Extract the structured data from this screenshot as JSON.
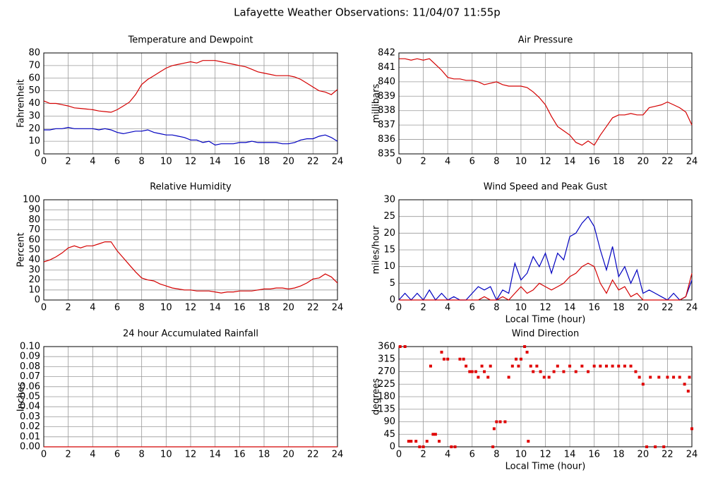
{
  "title": "Lafayette Weather Observations: 11/04/07 11:55p",
  "chart_data": [
    {
      "type": "line",
      "title": "Temperature and Dewpoint",
      "ylabel": "Fahrenheit",
      "x": [
        0,
        0.5,
        1,
        1.5,
        2,
        2.5,
        3,
        3.5,
        4,
        4.5,
        5,
        5.5,
        6,
        6.5,
        7,
        7.5,
        8,
        8.5,
        9,
        9.5,
        10,
        10.5,
        11,
        11.5,
        12,
        12.5,
        13,
        13.5,
        14,
        14.5,
        15,
        15.5,
        16,
        16.5,
        17,
        17.5,
        18,
        18.5,
        19,
        19.5,
        20,
        20.5,
        21,
        21.5,
        22,
        22.5,
        23,
        23.5,
        24
      ],
      "series": [
        {
          "color": "#d40000",
          "values": [
            42,
            40,
            40,
            39,
            38,
            36.5,
            36,
            35.5,
            35,
            34,
            33.5,
            33,
            35,
            38,
            41,
            47,
            55,
            59,
            62,
            65,
            68,
            70,
            71,
            72,
            73,
            72,
            74,
            74,
            74,
            73,
            72,
            71,
            70,
            69,
            67,
            65,
            64,
            63,
            62,
            62,
            62,
            61,
            59,
            56,
            53,
            50,
            49,
            47,
            51
          ]
        },
        {
          "color": "#0000c0",
          "values": [
            19,
            19,
            20,
            20,
            21,
            20,
            20,
            20,
            20,
            19,
            20,
            19,
            17,
            16,
            17,
            18,
            18,
            19,
            17,
            16,
            15,
            15,
            14,
            13,
            11,
            11,
            9,
            10,
            7,
            8,
            8,
            8,
            9,
            9,
            10,
            9,
            9,
            9,
            9,
            8,
            8,
            9,
            11,
            12,
            12,
            14,
            15,
            13,
            10
          ]
        }
      ],
      "xlim": [
        0,
        24
      ],
      "xticks": [
        0,
        2,
        4,
        6,
        8,
        10,
        12,
        14,
        16,
        18,
        20,
        22,
        24
      ],
      "ylim": [
        0,
        80
      ],
      "yticks": [
        0,
        10,
        20,
        30,
        40,
        50,
        60,
        70,
        80
      ],
      "grid": true
    },
    {
      "type": "line",
      "title": "Air Pressure",
      "ylabel": "millibars",
      "x": [
        0,
        0.5,
        1,
        1.5,
        2,
        2.5,
        3,
        3.5,
        4,
        4.5,
        5,
        5.5,
        6,
        6.5,
        7,
        7.5,
        8,
        8.5,
        9,
        9.5,
        10,
        10.5,
        11,
        11.5,
        12,
        12.5,
        13,
        13.5,
        14,
        14.5,
        15,
        15.5,
        16,
        16.5,
        17,
        17.5,
        18,
        18.5,
        19,
        19.5,
        20,
        20.5,
        21,
        21.5,
        22,
        22.5,
        23,
        23.5,
        24
      ],
      "series": [
        {
          "color": "#d40000",
          "values": [
            841.6,
            841.6,
            841.5,
            841.6,
            841.5,
            841.6,
            841.2,
            840.8,
            840.3,
            840.2,
            840.2,
            840.1,
            840.1,
            840.0,
            839.8,
            839.9,
            840.0,
            839.8,
            839.7,
            839.7,
            839.7,
            839.6,
            839.3,
            838.9,
            838.4,
            837.6,
            836.9,
            836.6,
            836.3,
            835.8,
            835.6,
            835.9,
            835.6,
            836.3,
            836.9,
            837.5,
            837.7,
            837.7,
            837.8,
            837.7,
            837.7,
            838.2,
            838.3,
            838.4,
            838.6,
            838.4,
            838.2,
            837.9,
            837.0
          ]
        }
      ],
      "xlim": [
        0,
        24
      ],
      "xticks": [
        0,
        2,
        4,
        6,
        8,
        10,
        12,
        14,
        16,
        18,
        20,
        22,
        24
      ],
      "ylim": [
        835,
        842
      ],
      "yticks": [
        835,
        836,
        837,
        838,
        839,
        840,
        841,
        842
      ],
      "grid": true
    },
    {
      "type": "line",
      "title": "Relative Humidity",
      "ylabel": "Percent",
      "x": [
        0,
        0.5,
        1,
        1.5,
        2,
        2.5,
        3,
        3.5,
        4,
        4.5,
        5,
        5.5,
        6,
        6.5,
        7,
        7.5,
        8,
        8.5,
        9,
        9.5,
        10,
        10.5,
        11,
        11.5,
        12,
        12.5,
        13,
        13.5,
        14,
        14.5,
        15,
        15.5,
        16,
        16.5,
        17,
        17.5,
        18,
        18.5,
        19,
        19.5,
        20,
        20.5,
        21,
        21.5,
        22,
        22.5,
        23,
        23.5,
        24
      ],
      "series": [
        {
          "color": "#d40000",
          "values": [
            38,
            40,
            43,
            47,
            52,
            54,
            52,
            54,
            54,
            56,
            58,
            58,
            49,
            42,
            35,
            28,
            22,
            20,
            19,
            16,
            14,
            12,
            11,
            10,
            10,
            9,
            9,
            9,
            8,
            7,
            8,
            8,
            9,
            9,
            9,
            10,
            11,
            11,
            12,
            12,
            11,
            12,
            14,
            17,
            21,
            22,
            26,
            23,
            17
          ]
        }
      ],
      "xlim": [
        0,
        24
      ],
      "xticks": [
        0,
        2,
        4,
        6,
        8,
        10,
        12,
        14,
        16,
        18,
        20,
        22,
        24
      ],
      "ylim": [
        0,
        100
      ],
      "yticks": [
        0,
        10,
        20,
        30,
        40,
        50,
        60,
        70,
        80,
        90,
        100
      ],
      "grid": true
    },
    {
      "type": "line",
      "title": "Wind Speed and Peak Gust",
      "ylabel": "miles/hour",
      "xlabel": "Local Time (hour)",
      "x": [
        0,
        0.5,
        1,
        1.5,
        2,
        2.5,
        3,
        3.5,
        4,
        4.5,
        5,
        5.5,
        6,
        6.5,
        7,
        7.5,
        8,
        8.5,
        9,
        9.5,
        10,
        10.5,
        11,
        11.5,
        12,
        12.5,
        13,
        13.5,
        14,
        14.5,
        15,
        15.5,
        16,
        16.5,
        17,
        17.5,
        18,
        18.5,
        19,
        19.5,
        20,
        20.5,
        21,
        21.5,
        22,
        22.5,
        23,
        23.5,
        24
      ],
      "series": [
        {
          "color": "#0000c0",
          "values": [
            0,
            2,
            0,
            2,
            0,
            3,
            0,
            2,
            0,
            1,
            0,
            0,
            2,
            4,
            3,
            4,
            0,
            3,
            2,
            11,
            6,
            8,
            13,
            10,
            14,
            8,
            14,
            12,
            19,
            20,
            23,
            25,
            22,
            15,
            9,
            16,
            7,
            10,
            5,
            9,
            2,
            3,
            2,
            1,
            0,
            2,
            0,
            1,
            6
          ]
        },
        {
          "color": "#d40000",
          "values": [
            0,
            0,
            0,
            0,
            0,
            0,
            0,
            0,
            0,
            0,
            0,
            0,
            0,
            0,
            1,
            0,
            0,
            1,
            0,
            2,
            4,
            2,
            3,
            5,
            4,
            3,
            4,
            5,
            7,
            8,
            10,
            11,
            10,
            5,
            2,
            6,
            3,
            4,
            1,
            2,
            0,
            0,
            0,
            0,
            0,
            0,
            0,
            1,
            8
          ]
        }
      ],
      "xlim": [
        0,
        24
      ],
      "xticks": [
        0,
        2,
        4,
        6,
        8,
        10,
        12,
        14,
        16,
        18,
        20,
        22,
        24
      ],
      "ylim": [
        0,
        30
      ],
      "yticks": [
        0,
        5,
        10,
        15,
        20,
        25,
        30
      ],
      "grid": true
    },
    {
      "type": "line",
      "title": "24 hour Accumulated Rainfall",
      "ylabel": "Inches",
      "x": [
        0,
        24
      ],
      "series": [
        {
          "color": "#d40000",
          "values": [
            0,
            0
          ]
        }
      ],
      "xlim": [
        0,
        24
      ],
      "xticks": [
        0,
        2,
        4,
        6,
        8,
        10,
        12,
        14,
        16,
        18,
        20,
        22,
        24
      ],
      "ylim": [
        0,
        0.1
      ],
      "yticks": [
        {
          "value": 0,
          "label": "0.00"
        },
        {
          "value": 0.01,
          "label": "0.01"
        },
        {
          "value": 0.02,
          "label": "0.02"
        },
        {
          "value": 0.03,
          "label": "0.03"
        },
        {
          "value": 0.04,
          "label": "0.04"
        },
        {
          "value": 0.05,
          "label": "0.05"
        },
        {
          "value": 0.06,
          "label": "0.06"
        },
        {
          "value": 0.07,
          "label": "0.07"
        },
        {
          "value": 0.08,
          "label": "0.08"
        },
        {
          "value": 0.09,
          "label": "0.09"
        },
        {
          "value": 0.1,
          "label": "0.10"
        }
      ],
      "grid": true
    },
    {
      "type": "scatter",
      "title": "Wind Direction",
      "ylabel": "degrees",
      "xlabel": "Local Time (hour)",
      "x": [
        0.1,
        0.5,
        0.8,
        1,
        1.4,
        1.7,
        2,
        2.3,
        2.6,
        2.8,
        3,
        3.3,
        3.5,
        3.7,
        4,
        4.3,
        4.6,
        5,
        5.3,
        5.5,
        5.8,
        6,
        6.3,
        6.5,
        6.8,
        7,
        7.3,
        7.5,
        7.7,
        7.8,
        8,
        8.3,
        8.7,
        9,
        9.3,
        9.6,
        9.8,
        10,
        10.3,
        10.5,
        10.6,
        10.8,
        11,
        11.3,
        11.6,
        11.9,
        12.3,
        12.7,
        13,
        13.5,
        14,
        14.5,
        15,
        15.5,
        16,
        16.5,
        17,
        17.5,
        18,
        18.5,
        19,
        19.4,
        19.7,
        20,
        20.3,
        20.6,
        21,
        21.3,
        21.7,
        22,
        22.5,
        23,
        23.4,
        23.7,
        23.8,
        24
      ],
      "series": [
        {
          "color": "#e00000",
          "values": [
            360,
            360,
            20,
            20,
            20,
            0,
            0,
            20,
            290,
            45,
            45,
            20,
            340,
            315,
            315,
            0,
            0,
            315,
            315,
            290,
            270,
            270,
            270,
            250,
            290,
            270,
            250,
            290,
            0,
            65,
            90,
            90,
            90,
            250,
            290,
            315,
            290,
            315,
            360,
            340,
            20,
            290,
            270,
            290,
            270,
            250,
            250,
            270,
            290,
            270,
            290,
            270,
            290,
            270,
            290,
            290,
            290,
            290,
            290,
            290,
            290,
            270,
            250,
            225,
            0,
            250,
            0,
            250,
            0,
            250,
            250,
            250,
            225,
            200,
            250,
            65
          ]
        }
      ],
      "xlim": [
        0,
        24
      ],
      "xticks": [
        0,
        2,
        4,
        6,
        8,
        10,
        12,
        14,
        16,
        18,
        20,
        22,
        24
      ],
      "ylim": [
        0,
        360
      ],
      "yticks": [
        0,
        45,
        90,
        135,
        180,
        225,
        270,
        315,
        360
      ],
      "grid": true
    }
  ]
}
